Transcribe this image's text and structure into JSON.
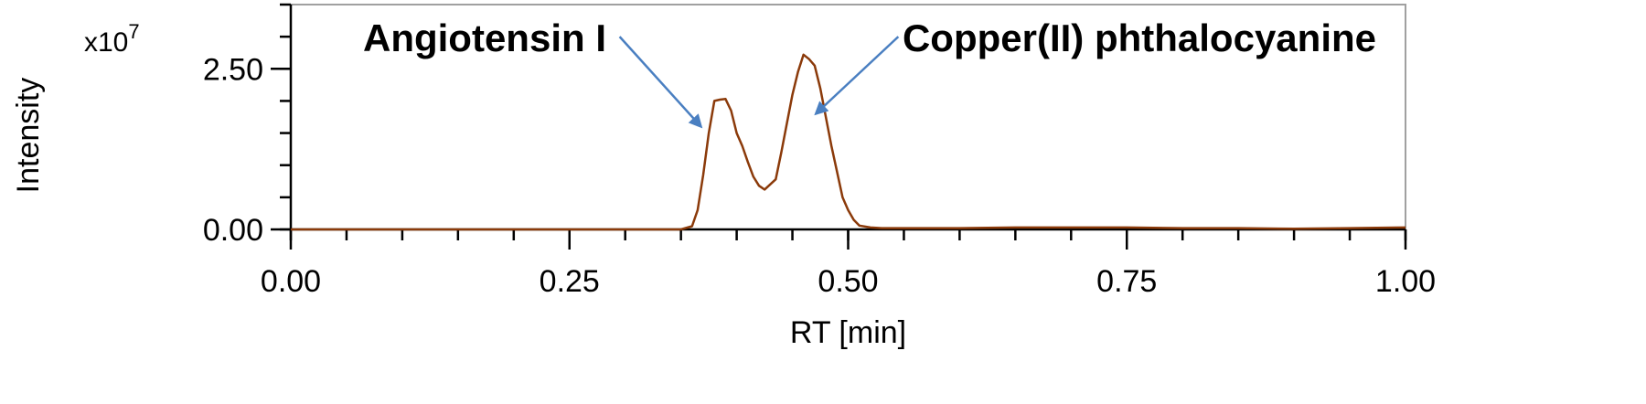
{
  "chart_data": {
    "type": "line",
    "xlabel": "RT [min]",
    "ylabel": "Intensity",
    "y_multiplier": {
      "base": "x10",
      "exponent": "7"
    },
    "xlim": [
      0,
      1.0
    ],
    "ylim": [
      0,
      3.5
    ],
    "x_ticks": [
      0.0,
      0.25,
      0.5,
      0.75,
      1.0
    ],
    "x_tick_labels": [
      "0.00",
      "0.25",
      "0.50",
      "0.75",
      "1.00"
    ],
    "x_minor_step": 0.05,
    "y_ticks": [
      0.0,
      2.5
    ],
    "y_tick_labels": [
      "0.00",
      "2.50"
    ],
    "y_minor_step": 0.5,
    "grid": false,
    "line_color": "#8B3A0A",
    "arrow_color": "#4A7FC1",
    "series": [
      {
        "x": [
          0.0,
          0.1,
          0.2,
          0.3,
          0.35,
          0.36,
          0.365,
          0.37,
          0.375,
          0.38,
          0.385,
          0.39,
          0.395,
          0.4,
          0.405,
          0.41,
          0.415,
          0.42,
          0.425,
          0.43,
          0.435,
          0.44,
          0.445,
          0.45,
          0.455,
          0.46,
          0.465,
          0.47,
          0.475,
          0.48,
          0.485,
          0.49,
          0.495,
          0.5,
          0.505,
          0.51,
          0.52,
          0.53,
          0.55,
          0.6,
          0.65,
          0.7,
          0.75,
          0.8,
          0.85,
          0.9,
          0.95,
          1.0
        ],
        "y": [
          0.0,
          0.0,
          0.0,
          0.0,
          0.0,
          0.05,
          0.3,
          0.85,
          1.5,
          2.0,
          2.02,
          2.03,
          1.85,
          1.5,
          1.3,
          1.05,
          0.82,
          0.68,
          0.62,
          0.7,
          0.78,
          1.2,
          1.65,
          2.1,
          2.45,
          2.72,
          2.65,
          2.55,
          2.2,
          1.75,
          1.3,
          0.9,
          0.5,
          0.3,
          0.15,
          0.06,
          0.03,
          0.02,
          0.02,
          0.02,
          0.03,
          0.03,
          0.03,
          0.02,
          0.02,
          0.01,
          0.02,
          0.03
        ]
      }
    ],
    "annotations": [
      {
        "text": "Angiotensin I",
        "arrow_from": [
          0.295,
          3.0
        ],
        "arrow_to": [
          0.368,
          1.6
        ]
      },
      {
        "text": "Copper(II) phthalocyanine",
        "arrow_from": [
          0.545,
          3.0
        ],
        "arrow_to": [
          0.471,
          1.8
        ]
      }
    ]
  }
}
